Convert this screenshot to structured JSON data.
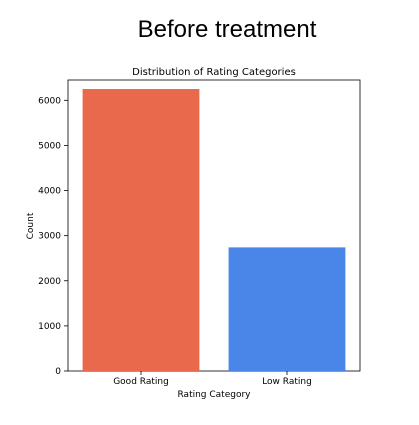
{
  "heading": "Before treatment",
  "chart_data": {
    "type": "bar",
    "title": "Distribution of Rating Categories",
    "xlabel": "Rating Category",
    "ylabel": "Count",
    "categories": [
      "Good Rating",
      "Low Rating"
    ],
    "values": [
      6250,
      2740
    ],
    "colors": [
      "#e8694b",
      "#4a86e8"
    ],
    "ylim": [
      0,
      6450
    ],
    "yticks": [
      0,
      1000,
      2000,
      3000,
      4000,
      5000,
      6000
    ],
    "grid": false,
    "legend": "none"
  }
}
